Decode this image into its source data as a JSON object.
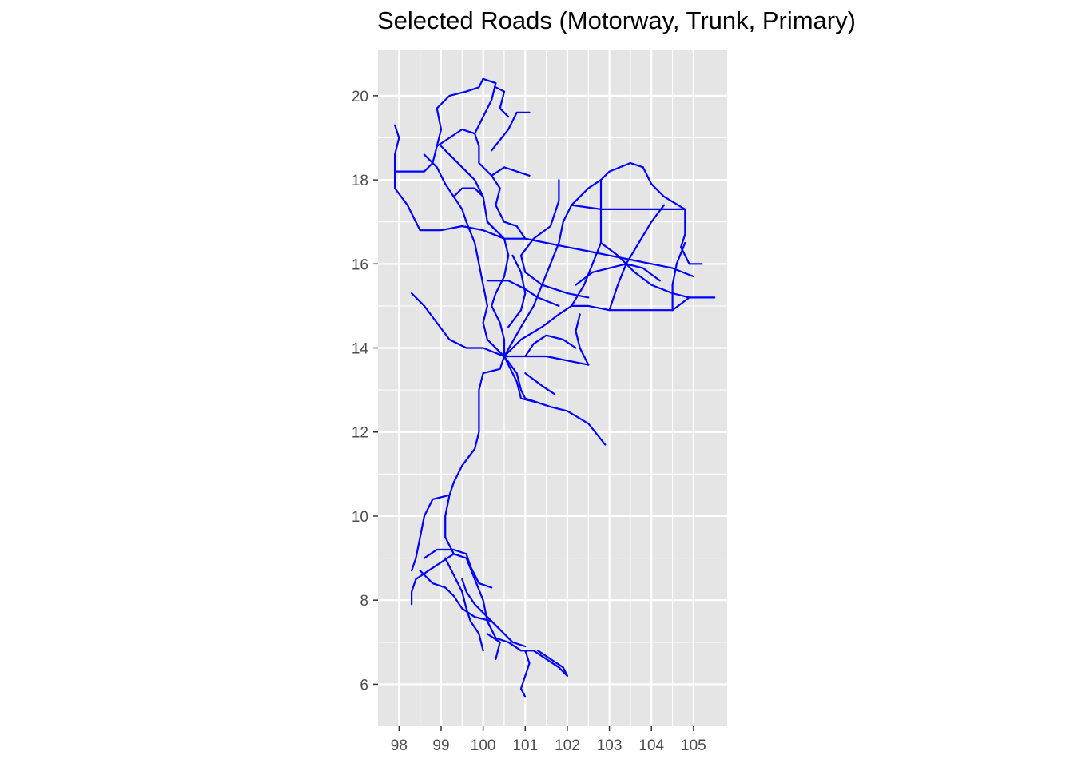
{
  "title": "Selected Roads (Motorway, Trunk, Primary)",
  "colors": {
    "panel": "#e5e5e5",
    "grid": "#ffffff",
    "road": "#0000ff",
    "tick": "#333333"
  },
  "chart_data": {
    "type": "map",
    "title": "Selected Roads (Motorway, Trunk, Primary)",
    "xlim": [
      97.5,
      105.8
    ],
    "ylim": [
      5,
      21.1
    ],
    "x_ticks": [
      98,
      99,
      100,
      101,
      102,
      103,
      104,
      105
    ],
    "y_ticks": [
      6,
      8,
      10,
      12,
      14,
      16,
      18,
      20
    ],
    "x_tick_labels": [
      "98",
      "99",
      "100",
      "101",
      "102",
      "103",
      "104",
      "105"
    ],
    "y_tick_labels": [
      "6",
      "8",
      "10",
      "12",
      "14",
      "16",
      "18",
      "20"
    ],
    "grid": true,
    "roads": [
      [
        [
          97.9,
          19.3
        ],
        [
          98.0,
          19.0
        ],
        [
          97.9,
          18.6
        ],
        [
          97.9,
          18.2
        ],
        [
          97.9,
          17.8
        ],
        [
          98.2,
          17.4
        ],
        [
          98.4,
          17.0
        ],
        [
          98.5,
          16.8
        ]
      ],
      [
        [
          97.9,
          18.2
        ],
        [
          98.3,
          18.2
        ],
        [
          98.6,
          18.2
        ],
        [
          98.8,
          18.4
        ],
        [
          98.9,
          18.8
        ]
      ],
      [
        [
          98.9,
          18.8
        ],
        [
          99.0,
          19.2
        ],
        [
          98.9,
          19.7
        ],
        [
          99.2,
          20.0
        ],
        [
          99.6,
          20.1
        ],
        [
          99.9,
          20.2
        ],
        [
          100.0,
          20.4
        ]
      ],
      [
        [
          98.9,
          18.8
        ],
        [
          99.2,
          19.0
        ],
        [
          99.5,
          19.2
        ],
        [
          99.8,
          19.1
        ],
        [
          99.9,
          18.8
        ],
        [
          99.9,
          18.4
        ],
        [
          100.2,
          18.1
        ]
      ],
      [
        [
          99.0,
          18.8
        ],
        [
          99.3,
          18.5
        ],
        [
          99.5,
          18.3
        ],
        [
          99.8,
          18.0
        ],
        [
          100.0,
          17.6
        ],
        [
          100.1,
          17.0
        ],
        [
          100.3,
          16.8
        ]
      ],
      [
        [
          100.1,
          17.0
        ],
        [
          100.5,
          16.6
        ],
        [
          100.6,
          16.2
        ],
        [
          100.5,
          15.7
        ],
        [
          100.3,
          15.3
        ],
        [
          100.2,
          15.0
        ],
        [
          100.4,
          14.6
        ],
        [
          100.5,
          14.2
        ],
        [
          100.5,
          13.8
        ]
      ],
      [
        [
          98.5,
          16.8
        ],
        [
          99.0,
          16.8
        ],
        [
          99.5,
          16.9
        ],
        [
          100.0,
          16.8
        ],
        [
          100.5,
          16.6
        ],
        [
          101.0,
          16.6
        ],
        [
          101.5,
          16.5
        ],
        [
          102.0,
          16.4
        ],
        [
          102.5,
          16.3
        ],
        [
          103.0,
          16.2
        ],
        [
          103.5,
          16.1
        ],
        [
          104.0,
          16.0
        ],
        [
          104.5,
          15.9
        ],
        [
          105.0,
          15.7
        ]
      ],
      [
        [
          99.8,
          19.1
        ],
        [
          100.0,
          19.5
        ],
        [
          100.2,
          19.9
        ],
        [
          100.3,
          20.3
        ],
        [
          100.0,
          20.4
        ]
      ],
      [
        [
          100.2,
          18.1
        ],
        [
          100.5,
          18.3
        ],
        [
          100.8,
          18.2
        ],
        [
          101.1,
          18.1
        ]
      ],
      [
        [
          100.2,
          18.1
        ],
        [
          100.4,
          17.8
        ],
        [
          100.3,
          17.4
        ],
        [
          100.5,
          17.0
        ],
        [
          100.8,
          16.9
        ],
        [
          101.0,
          16.6
        ]
      ],
      [
        [
          100.2,
          18.7
        ],
        [
          100.6,
          19.2
        ],
        [
          100.8,
          19.6
        ],
        [
          101.1,
          19.6
        ]
      ],
      [
        [
          99.6,
          17.0
        ],
        [
          99.8,
          16.5
        ],
        [
          99.9,
          16.0
        ],
        [
          100.0,
          15.5
        ],
        [
          100.1,
          15.0
        ],
        [
          100.0,
          14.6
        ],
        [
          100.1,
          14.2
        ],
        [
          100.4,
          13.9
        ],
        [
          100.5,
          13.8
        ]
      ],
      [
        [
          98.3,
          15.3
        ],
        [
          98.6,
          15.0
        ],
        [
          98.9,
          14.6
        ],
        [
          99.2,
          14.2
        ],
        [
          99.6,
          14.0
        ],
        [
          100.0,
          14.0
        ],
        [
          100.5,
          13.8
        ]
      ],
      [
        [
          100.5,
          13.8
        ],
        [
          100.4,
          13.5
        ],
        [
          100.0,
          13.4
        ],
        [
          99.9,
          13.0
        ],
        [
          99.9,
          12.5
        ],
        [
          99.9,
          12.0
        ],
        [
          99.8,
          11.6
        ],
        [
          99.5,
          11.2
        ],
        [
          99.3,
          10.8
        ],
        [
          99.2,
          10.5
        ],
        [
          99.1,
          10.0
        ],
        [
          99.1,
          9.5
        ],
        [
          99.3,
          9.1
        ]
      ],
      [
        [
          99.3,
          9.1
        ],
        [
          99.6,
          9.0
        ],
        [
          99.8,
          8.5
        ],
        [
          100.0,
          8.0
        ],
        [
          100.1,
          7.5
        ],
        [
          100.3,
          7.1
        ],
        [
          100.6,
          7.0
        ],
        [
          100.9,
          6.8
        ],
        [
          101.2,
          6.8
        ],
        [
          101.5,
          6.6
        ],
        [
          101.8,
          6.4
        ],
        [
          102.0,
          6.2
        ]
      ],
      [
        [
          99.3,
          9.1
        ],
        [
          99.0,
          8.9
        ],
        [
          98.7,
          8.7
        ],
        [
          98.4,
          8.5
        ],
        [
          98.3,
          8.2
        ],
        [
          98.3,
          7.9
        ]
      ],
      [
        [
          99.2,
          10.5
        ],
        [
          98.8,
          10.4
        ],
        [
          98.6,
          10.0
        ],
        [
          98.5,
          9.5
        ],
        [
          98.4,
          9.0
        ],
        [
          98.3,
          8.7
        ]
      ],
      [
        [
          99.1,
          9.0
        ],
        [
          99.3,
          8.6
        ],
        [
          99.5,
          8.2
        ],
        [
          99.6,
          7.8
        ],
        [
          99.7,
          7.5
        ],
        [
          99.9,
          7.2
        ],
        [
          100.0,
          6.8
        ]
      ],
      [
        [
          100.5,
          13.8
        ],
        [
          101.0,
          13.8
        ],
        [
          101.5,
          13.8
        ],
        [
          102.0,
          13.7
        ],
        [
          102.5,
          13.6
        ]
      ],
      [
        [
          100.5,
          13.8
        ],
        [
          100.8,
          13.4
        ],
        [
          100.9,
          13.0
        ],
        [
          101.0,
          12.8
        ],
        [
          101.3,
          12.7
        ],
        [
          101.6,
          12.6
        ],
        [
          102.0,
          12.5
        ],
        [
          102.5,
          12.2
        ],
        [
          102.9,
          11.7
        ]
      ],
      [
        [
          100.5,
          13.8
        ],
        [
          100.9,
          14.2
        ],
        [
          101.4,
          14.5
        ],
        [
          101.8,
          14.8
        ],
        [
          102.1,
          15.0
        ],
        [
          102.5,
          15.0
        ],
        [
          103.0,
          14.9
        ],
        [
          103.5,
          14.9
        ],
        [
          104.0,
          14.9
        ],
        [
          104.5,
          14.9
        ],
        [
          104.9,
          15.2
        ],
        [
          105.5,
          15.2
        ]
      ],
      [
        [
          100.5,
          13.8
        ],
        [
          100.9,
          14.5
        ],
        [
          101.2,
          15.0
        ],
        [
          101.4,
          15.5
        ],
        [
          101.6,
          16.0
        ],
        [
          101.8,
          16.5
        ],
        [
          101.9,
          17.0
        ],
        [
          102.1,
          17.4
        ],
        [
          102.5,
          17.8
        ],
        [
          102.8,
          18.0
        ]
      ],
      [
        [
          102.1,
          15.0
        ],
        [
          102.4,
          15.5
        ],
        [
          102.6,
          16.0
        ],
        [
          102.8,
          16.5
        ],
        [
          102.8,
          17.0
        ],
        [
          102.8,
          17.4
        ],
        [
          102.8,
          18.0
        ],
        [
          103.0,
          18.2
        ],
        [
          103.5,
          18.4
        ],
        [
          103.8,
          18.3
        ]
      ],
      [
        [
          103.8,
          18.3
        ],
        [
          104.0,
          17.9
        ],
        [
          104.3,
          17.6
        ],
        [
          104.8,
          17.3
        ],
        [
          104.8,
          16.7
        ],
        [
          104.7,
          16.4
        ],
        [
          104.9,
          16.0
        ],
        [
          105.2,
          16.0
        ]
      ],
      [
        [
          102.1,
          17.4
        ],
        [
          102.8,
          17.3
        ],
        [
          103.5,
          17.3
        ],
        [
          104.0,
          17.3
        ],
        [
          104.8,
          17.3
        ]
      ],
      [
        [
          101.8,
          18.0
        ],
        [
          101.8,
          17.5
        ],
        [
          101.6,
          16.9
        ],
        [
          101.2,
          16.6
        ],
        [
          100.9,
          16.2
        ],
        [
          101.0,
          15.8
        ],
        [
          101.4,
          15.5
        ],
        [
          102.0,
          15.3
        ],
        [
          102.5,
          15.2
        ]
      ],
      [
        [
          102.8,
          16.5
        ],
        [
          103.2,
          16.2
        ],
        [
          103.6,
          15.8
        ],
        [
          104.0,
          15.5
        ],
        [
          104.5,
          15.3
        ],
        [
          104.9,
          15.2
        ]
      ],
      [
        [
          103.0,
          14.9
        ],
        [
          103.2,
          15.5
        ],
        [
          103.4,
          16.0
        ],
        [
          103.7,
          16.5
        ],
        [
          104.0,
          17.0
        ],
        [
          104.3,
          17.4
        ]
      ],
      [
        [
          102.2,
          15.5
        ],
        [
          102.6,
          15.8
        ],
        [
          103.0,
          15.9
        ],
        [
          103.4,
          16.0
        ],
        [
          103.8,
          15.9
        ],
        [
          104.2,
          15.6
        ]
      ],
      [
        [
          104.5,
          14.9
        ],
        [
          104.5,
          15.5
        ],
        [
          104.6,
          16.0
        ],
        [
          104.8,
          16.5
        ]
      ],
      [
        [
          100.1,
          15.6
        ],
        [
          100.6,
          15.6
        ],
        [
          101.0,
          15.4
        ],
        [
          101.3,
          15.2
        ],
        [
          101.8,
          15.0
        ]
      ],
      [
        [
          100.6,
          14.5
        ],
        [
          100.9,
          14.9
        ],
        [
          101.0,
          15.3
        ],
        [
          100.9,
          15.8
        ],
        [
          100.7,
          16.2
        ]
      ],
      [
        [
          102.5,
          13.6
        ],
        [
          102.3,
          14.0
        ],
        [
          102.2,
          14.4
        ],
        [
          102.3,
          14.8
        ]
      ],
      [
        [
          101.0,
          13.8
        ],
        [
          101.2,
          14.1
        ],
        [
          101.5,
          14.3
        ],
        [
          101.9,
          14.2
        ],
        [
          102.2,
          14.0
        ]
      ],
      [
        [
          100.5,
          13.8
        ],
        [
          100.8,
          13.2
        ],
        [
          100.9,
          12.8
        ],
        [
          101.3,
          12.7
        ]
      ],
      [
        [
          101.0,
          13.4
        ],
        [
          101.4,
          13.1
        ],
        [
          101.7,
          12.9
        ]
      ],
      [
        [
          98.6,
          18.6
        ],
        [
          98.9,
          18.3
        ],
        [
          99.1,
          17.9
        ],
        [
          99.3,
          17.6
        ],
        [
          99.5,
          17.3
        ],
        [
          99.6,
          17.0
        ]
      ],
      [
        [
          99.3,
          17.6
        ],
        [
          99.5,
          17.8
        ],
        [
          99.8,
          17.8
        ],
        [
          100.0,
          17.6
        ]
      ],
      [
        [
          100.3,
          20.2
        ],
        [
          100.5,
          20.1
        ],
        [
          100.4,
          19.7
        ],
        [
          100.6,
          19.5
        ]
      ],
      [
        [
          98.6,
          9.0
        ],
        [
          98.9,
          9.2
        ],
        [
          99.3,
          9.2
        ],
        [
          99.6,
          9.1
        ],
        [
          99.7,
          8.8
        ],
        [
          99.9,
          8.4
        ],
        [
          100.2,
          8.3
        ]
      ],
      [
        [
          98.5,
          8.7
        ],
        [
          98.8,
          8.4
        ],
        [
          99.1,
          8.3
        ],
        [
          99.3,
          8.1
        ],
        [
          99.5,
          7.8
        ],
        [
          99.8,
          7.6
        ],
        [
          100.2,
          7.5
        ],
        [
          100.5,
          7.2
        ],
        [
          100.7,
          7.0
        ],
        [
          101.0,
          6.9
        ]
      ],
      [
        [
          101.0,
          6.8
        ],
        [
          101.1,
          6.5
        ],
        [
          101.0,
          6.2
        ],
        [
          100.9,
          5.9
        ],
        [
          101.0,
          5.7
        ]
      ],
      [
        [
          101.3,
          6.8
        ],
        [
          101.6,
          6.6
        ],
        [
          101.9,
          6.4
        ],
        [
          102.0,
          6.2
        ]
      ],
      [
        [
          100.1,
          7.2
        ],
        [
          100.4,
          7.0
        ],
        [
          100.3,
          6.6
        ]
      ],
      [
        [
          99.5,
          8.5
        ],
        [
          99.6,
          8.2
        ],
        [
          99.8,
          7.9
        ],
        [
          100.1,
          7.6
        ],
        [
          100.4,
          7.3
        ]
      ]
    ]
  }
}
